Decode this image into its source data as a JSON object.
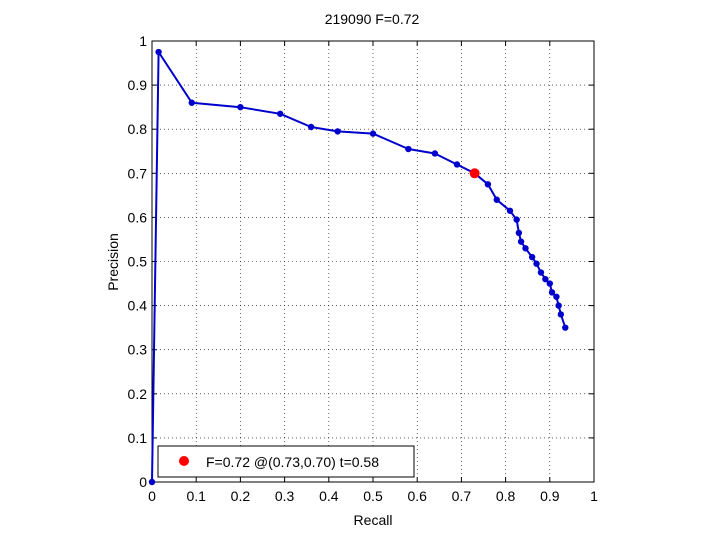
{
  "chart_data": {
    "type": "line",
    "title": "219090 F=0.72",
    "xlabel": "Recall",
    "ylabel": "Precision",
    "xlim": [
      0,
      1
    ],
    "ylim": [
      0,
      1
    ],
    "grid": true,
    "x_ticks": [
      "0",
      "0.1",
      "0.2",
      "0.3",
      "0.4",
      "0.5",
      "0.6",
      "0.7",
      "0.8",
      "0.9",
      "1"
    ],
    "y_ticks": [
      "0",
      "0.1",
      "0.2",
      "0.3",
      "0.4",
      "0.5",
      "0.6",
      "0.7",
      "0.8",
      "0.9",
      "1"
    ],
    "series": [
      {
        "color": "#0000cc",
        "x": [
          0.0,
          0.015,
          0.09,
          0.2,
          0.29,
          0.36,
          0.42,
          0.5,
          0.58,
          0.64,
          0.69,
          0.73,
          0.76,
          0.78,
          0.81,
          0.825,
          0.83,
          0.835,
          0.845,
          0.86,
          0.87,
          0.88,
          0.89,
          0.9,
          0.905,
          0.915,
          0.92,
          0.925,
          0.935
        ],
        "y": [
          0.0,
          0.975,
          0.86,
          0.85,
          0.835,
          0.805,
          0.795,
          0.79,
          0.755,
          0.745,
          0.72,
          0.7,
          0.675,
          0.64,
          0.615,
          0.595,
          0.565,
          0.545,
          0.53,
          0.51,
          0.495,
          0.475,
          0.46,
          0.45,
          0.43,
          0.42,
          0.4,
          0.38,
          0.35
        ]
      }
    ],
    "highlight": {
      "x": 0.73,
      "y": 0.7,
      "color": "#ff0000"
    },
    "legend": {
      "position": "bottom-left",
      "text": "F=0.72 @(0.73,0.70) t=0.58"
    }
  }
}
